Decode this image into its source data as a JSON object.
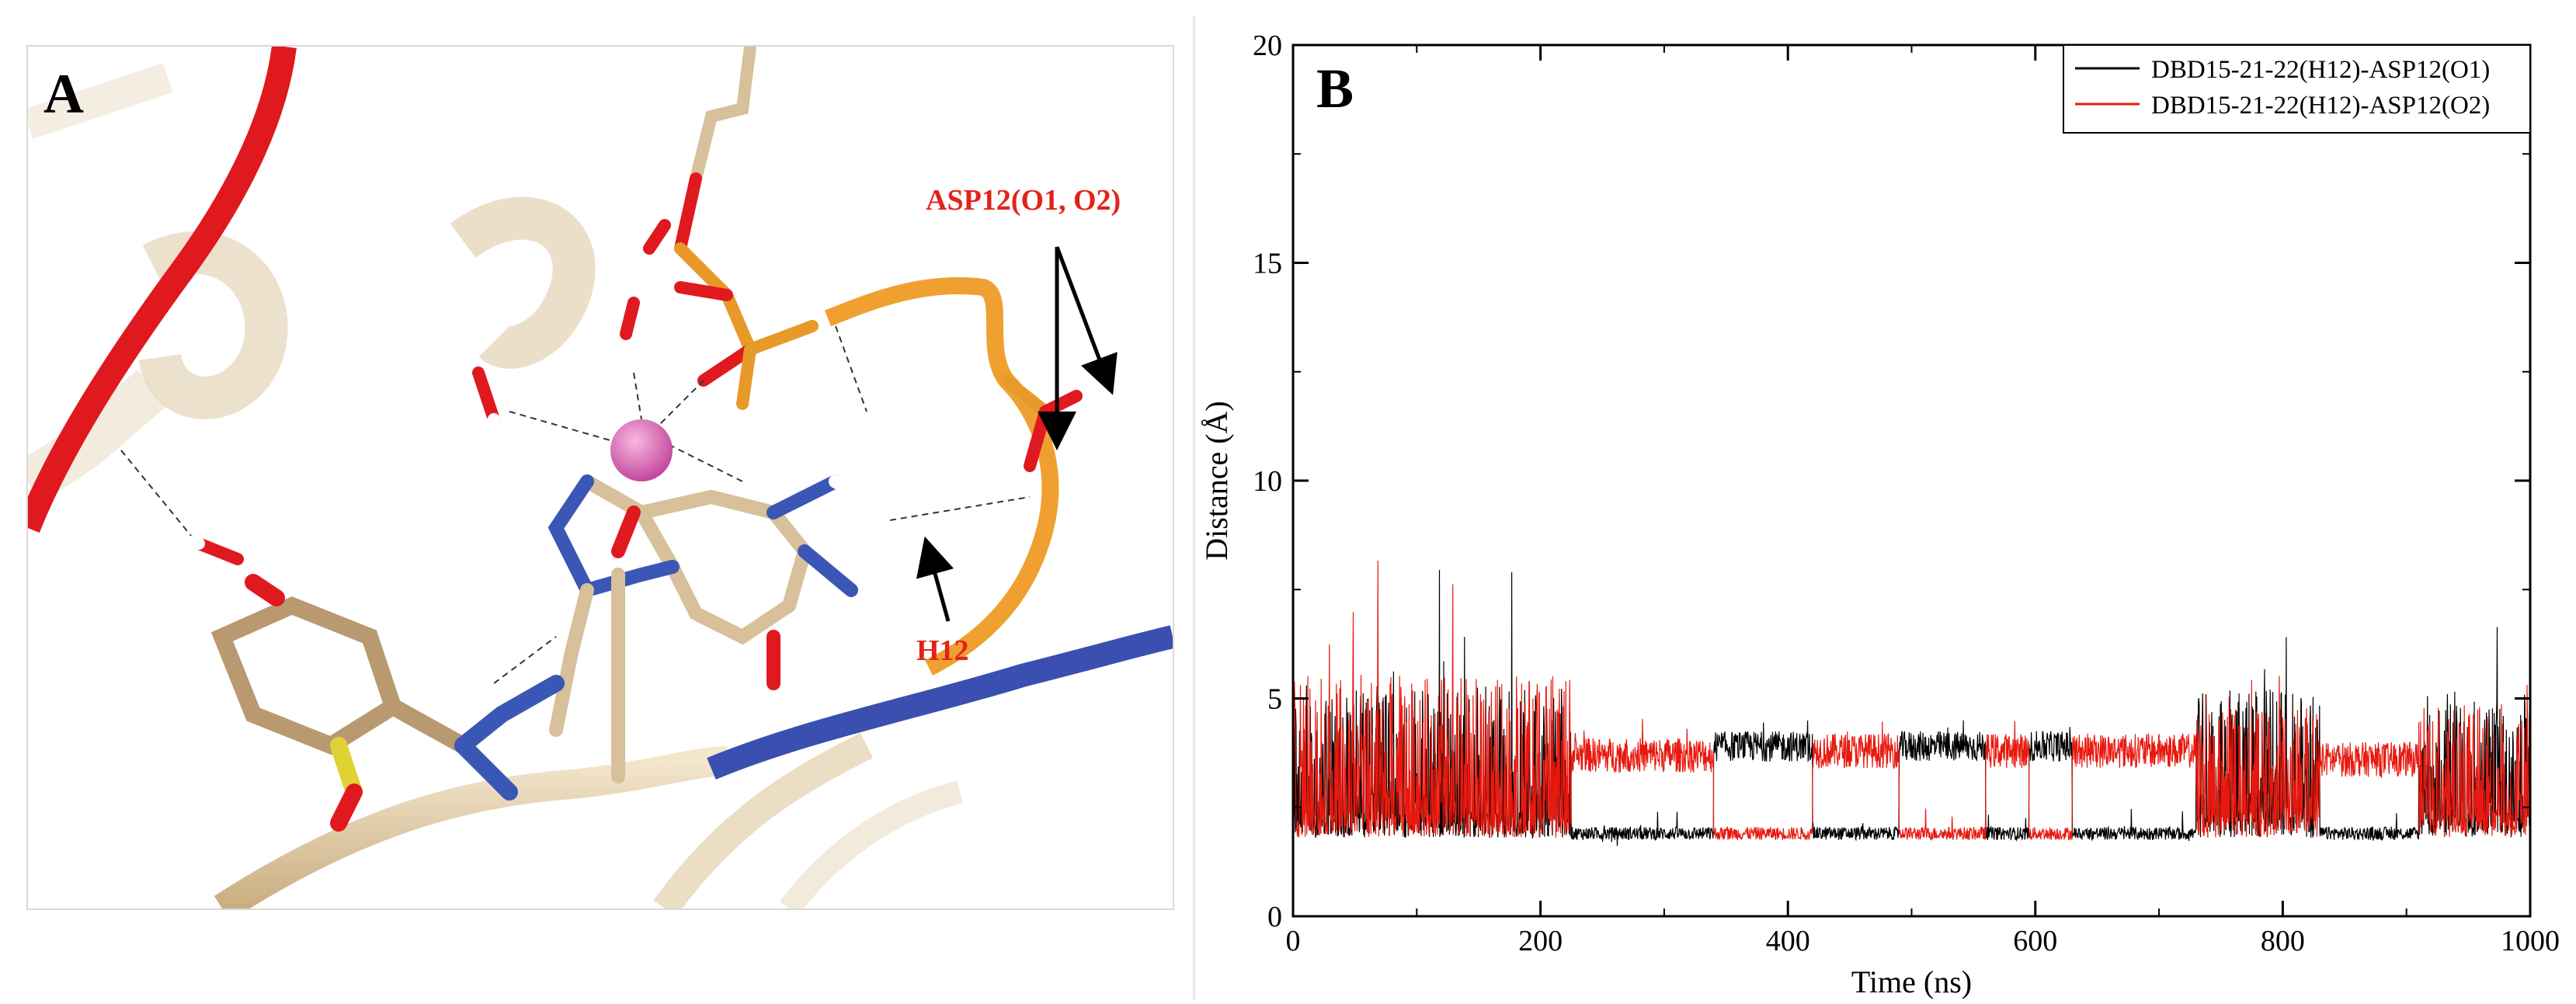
{
  "panel_a": {
    "letter": "A",
    "labels": {
      "asp12": "ASP12(O1, O2)",
      "h12": "H12"
    }
  },
  "panel_b": {
    "letter": "B"
  },
  "colors": {
    "series1": "#000000",
    "series2": "#e8190f",
    "ribbon_red": "#e0191e",
    "ribbon_blue": "#3b4fb0",
    "ribbon_tan": "#e6d2b0",
    "ribbon_orange": "#f0a030",
    "metal_ion": "#e060b0",
    "label_red": "#e2231a"
  },
  "chart_data": {
    "type": "line",
    "title": "",
    "xlabel": "Time (ns)",
    "ylabel": "Distance (Å)",
    "xlim": [
      0,
      1000
    ],
    "ylim": [
      0,
      20
    ],
    "xticks": [
      0,
      200,
      400,
      600,
      800,
      1000
    ],
    "yticks": [
      0,
      5,
      10,
      15,
      20
    ],
    "grid": false,
    "legend_position": "top-right",
    "segment_note": "per-interval occupancy; base = typical value, spread = fluctuation amplitude",
    "series": [
      {
        "name": "DBD15-21-22(H12)-ASP12(O1)",
        "color": "#000000",
        "segments": [
          {
            "x": [
              0,
              225
            ],
            "base": 3.2,
            "spread": 1.6,
            "peak": 8.3
          },
          {
            "x": [
              225,
              340
            ],
            "base": 1.9,
            "spread": 0.15
          },
          {
            "x": [
              340,
              420
            ],
            "base": 3.9,
            "spread": 0.35
          },
          {
            "x": [
              420,
              490
            ],
            "base": 1.9,
            "spread": 0.15
          },
          {
            "x": [
              490,
              560
            ],
            "base": 3.9,
            "spread": 0.35
          },
          {
            "x": [
              560,
              595
            ],
            "base": 1.9,
            "spread": 0.15
          },
          {
            "x": [
              595,
              630
            ],
            "base": 3.9,
            "spread": 0.35
          },
          {
            "x": [
              630,
              730
            ],
            "base": 1.9,
            "spread": 0.15
          },
          {
            "x": [
              730,
              830
            ],
            "base": 3.5,
            "spread": 1.3,
            "peak": 7.0
          },
          {
            "x": [
              830,
              910
            ],
            "base": 1.9,
            "spread": 0.15
          },
          {
            "x": [
              910,
              1000
            ],
            "base": 3.6,
            "spread": 1.2,
            "peak": 7.3
          }
        ]
      },
      {
        "name": "DBD15-21-22(H12)-ASP12(O2)",
        "color": "#e8190f",
        "segments": [
          {
            "x": [
              0,
              225
            ],
            "base": 3.3,
            "spread": 1.7,
            "peak": 9.2
          },
          {
            "x": [
              225,
              340
            ],
            "base": 3.7,
            "spread": 0.4
          },
          {
            "x": [
              340,
              420
            ],
            "base": 1.9,
            "spread": 0.15
          },
          {
            "x": [
              420,
              490
            ],
            "base": 3.8,
            "spread": 0.4
          },
          {
            "x": [
              490,
              560
            ],
            "base": 1.9,
            "spread": 0.15
          },
          {
            "x": [
              560,
              595
            ],
            "base": 3.8,
            "spread": 0.4
          },
          {
            "x": [
              595,
              630
            ],
            "base": 1.9,
            "spread": 0.15
          },
          {
            "x": [
              630,
              730
            ],
            "base": 3.8,
            "spread": 0.4
          },
          {
            "x": [
              730,
              830
            ],
            "base": 3.2,
            "spread": 1.2,
            "peak": 6.2
          },
          {
            "x": [
              830,
              910
            ],
            "base": 3.6,
            "spread": 0.4
          },
          {
            "x": [
              910,
              1000
            ],
            "base": 3.3,
            "spread": 1.2,
            "peak": 6.0
          }
        ]
      }
    ]
  }
}
